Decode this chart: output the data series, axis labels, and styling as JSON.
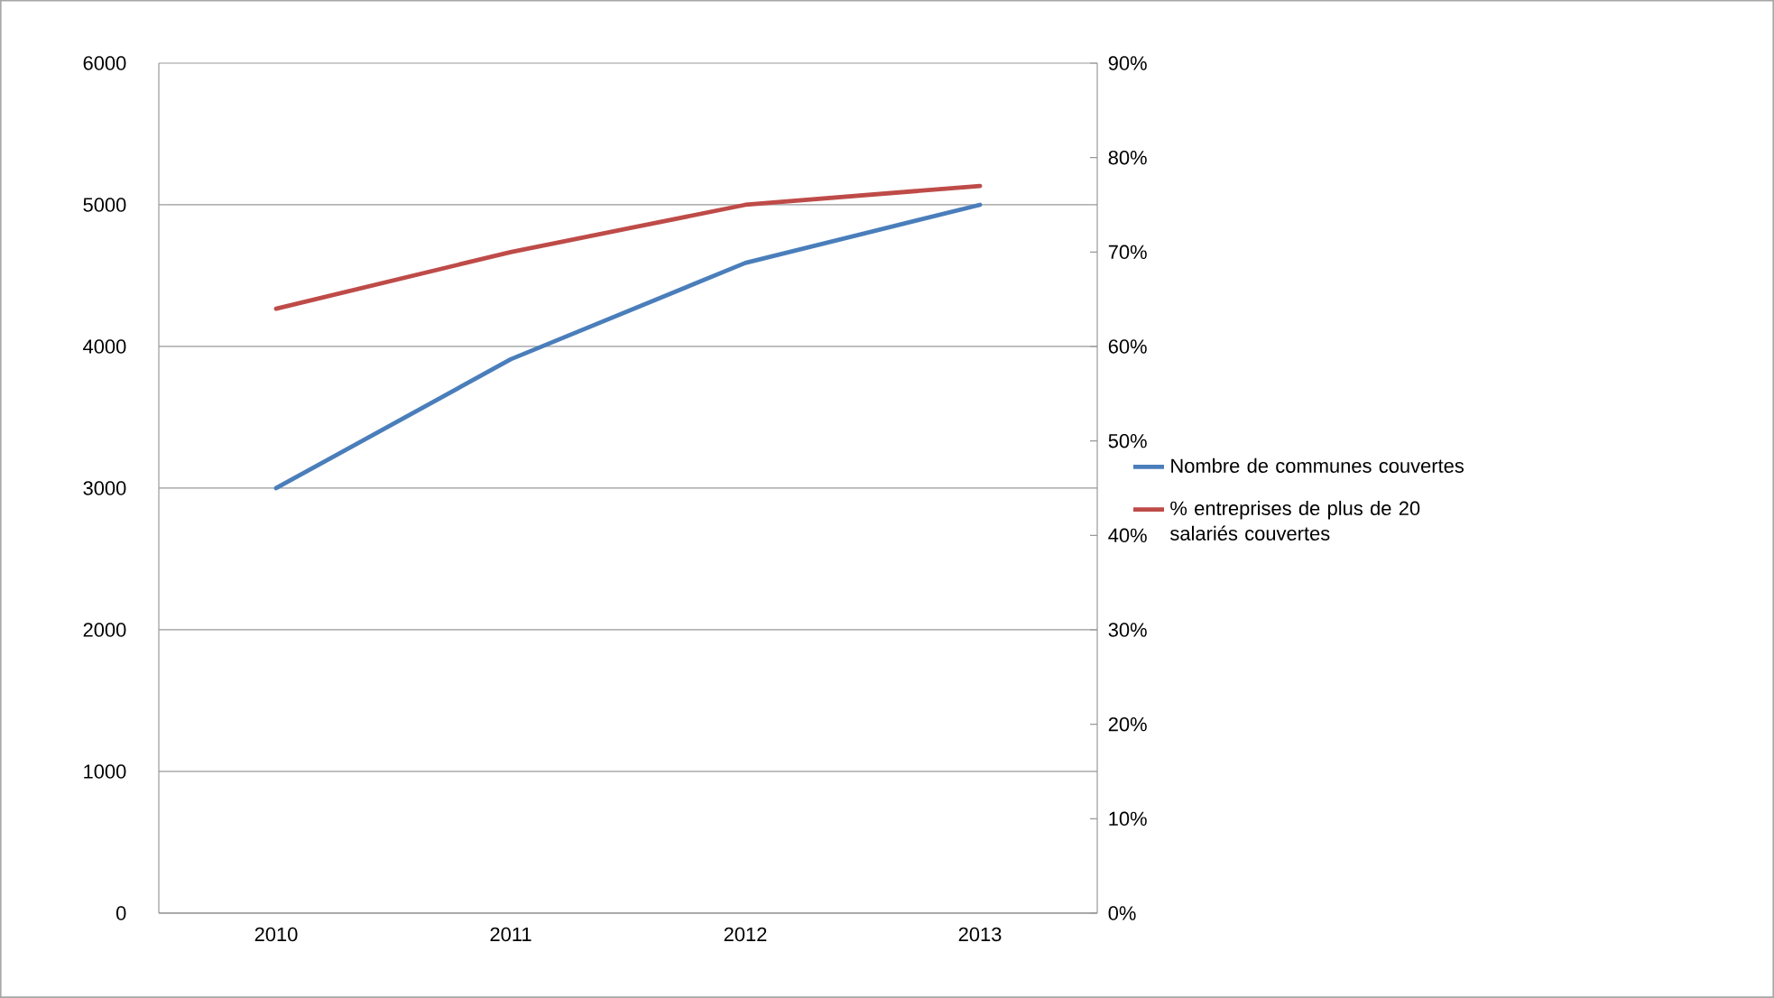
{
  "chart_data": {
    "type": "line",
    "categories": [
      "2010",
      "2011",
      "2012",
      "2013"
    ],
    "series": [
      {
        "name": "Nombre de communes couvertes",
        "color": "#4a7ebb",
        "values": [
          3000,
          3910,
          4590,
          5000
        ]
      },
      {
        "name": "% entreprises de plus de 20 salariés couvertes",
        "color": "#be4b48",
        "values": [
          64,
          70,
          75,
          77
        ],
        "axis": "y2"
      }
    ],
    "ylim": [
      0,
      6000
    ],
    "yticks": [
      0,
      1000,
      2000,
      3000,
      4000,
      5000,
      6000
    ],
    "y2lim": [
      0,
      90
    ],
    "y2ticks": [
      {
        "value": 0,
        "label": "0%"
      },
      {
        "value": 10,
        "label": "10%"
      },
      {
        "value": 20,
        "label": "20%"
      },
      {
        "value": 30,
        "label": "30%"
      },
      {
        "value": 40,
        "label": "40%"
      },
      {
        "value": 50,
        "label": "50%"
      },
      {
        "value": 60,
        "label": "60%"
      },
      {
        "value": 70,
        "label": "70%"
      },
      {
        "value": 80,
        "label": "80%"
      },
      {
        "value": 90,
        "label": "90%"
      }
    ],
    "grid": "y",
    "legend": "right"
  }
}
